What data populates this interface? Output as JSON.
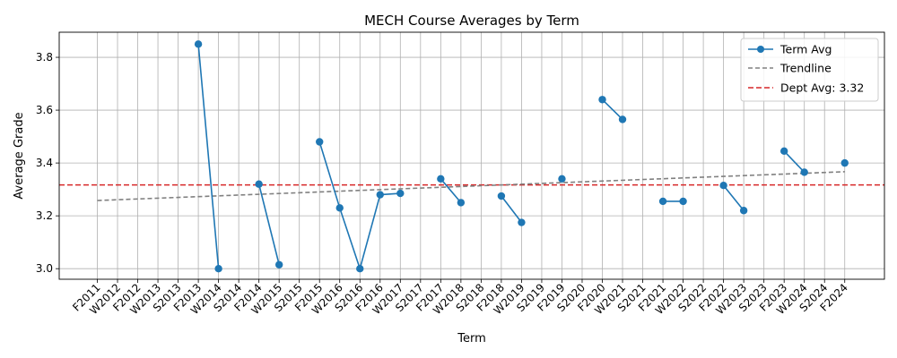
{
  "chart_data": {
    "type": "line",
    "title": "MECH Course Averages by Term",
    "xlabel": "Term",
    "ylabel": "Average Grade",
    "ylim": [
      2.96,
      3.895
    ],
    "yticks": [
      3.0,
      3.2,
      3.4,
      3.6,
      3.8
    ],
    "grid": true,
    "legend_position": "top-right",
    "categories": [
      "F2011",
      "W2012",
      "F2012",
      "W2013",
      "S2013",
      "F2013",
      "W2014",
      "S2014",
      "F2014",
      "W2015",
      "S2015",
      "F2015",
      "W2016",
      "S2016",
      "F2016",
      "W2017",
      "S2017",
      "F2017",
      "W2018",
      "S2018",
      "F2018",
      "W2019",
      "S2019",
      "F2019",
      "S2020",
      "F2020",
      "W2021",
      "S2021",
      "F2021",
      "W2022",
      "S2022",
      "F2022",
      "W2023",
      "S2023",
      "F2023",
      "W2024",
      "S2024",
      "F2024"
    ],
    "series": [
      {
        "name": "Term Avg",
        "color": "#1f77b4",
        "values": [
          null,
          null,
          null,
          null,
          null,
          3.85,
          3.0,
          null,
          3.32,
          3.015,
          null,
          3.48,
          3.23,
          3.0,
          3.28,
          3.285,
          null,
          3.34,
          3.25,
          null,
          3.275,
          3.175,
          null,
          3.34,
          null,
          3.64,
          3.565,
          null,
          3.255,
          3.255,
          null,
          3.315,
          3.22,
          null,
          3.445,
          3.365,
          null,
          3.4
        ]
      },
      {
        "name": "Trendline",
        "color": "#808080",
        "values_start": 3.258,
        "values_end": 3.367
      }
    ],
    "reference_line": {
      "name": "Dept Avg: 3.32",
      "value": 3.317,
      "color": "#d62728"
    }
  }
}
